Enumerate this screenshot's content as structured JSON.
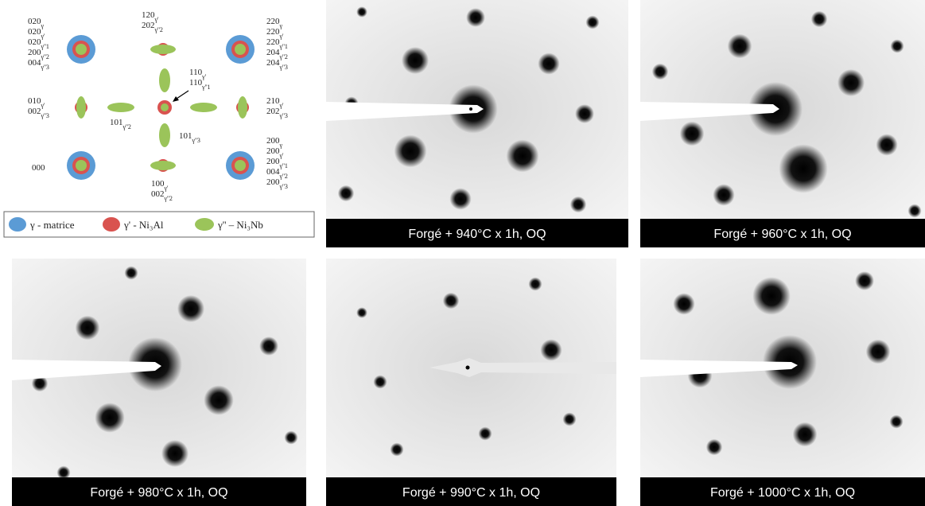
{
  "schematic": {
    "groups": [
      {
        "lines": [
          {
            "index": "020",
            "phase": "γ"
          },
          {
            "index": "020",
            "phase": "γ'"
          },
          {
            "index": "020",
            "phase": "γ''1"
          },
          {
            "index": "200",
            "phase": "γ''2"
          },
          {
            "index": "004",
            "phase": "γ''3"
          }
        ]
      },
      {
        "lines": [
          {
            "index": "120",
            "phase": "γ'"
          },
          {
            "index": "202",
            "phase": "γ''2"
          }
        ]
      },
      {
        "lines": [
          {
            "index": "220",
            "phase": "γ"
          },
          {
            "index": "220",
            "phase": "γ'"
          },
          {
            "index": "220",
            "phase": "γ''1"
          },
          {
            "index": "204",
            "phase": "γ''2"
          },
          {
            "index": "204",
            "phase": "γ''3"
          }
        ]
      },
      {
        "lines": [
          {
            "index": "110",
            "phase": "γ'"
          },
          {
            "index": "110",
            "phase": "γ''1"
          }
        ]
      },
      {
        "lines": [
          {
            "index": "010",
            "phase": "γ'"
          },
          {
            "index": "002",
            "phase": "γ''3"
          }
        ]
      },
      {
        "lines": [
          {
            "index": "101",
            "phase": "γ''2"
          }
        ]
      },
      {
        "lines": [
          {
            "index": "101",
            "phase": "γ''3"
          }
        ]
      },
      {
        "lines": [
          {
            "index": "210",
            "phase": "γ'"
          },
          {
            "index": "202",
            "phase": "γ''3"
          }
        ]
      },
      {
        "lines": [
          {
            "index": "000",
            "phase": ""
          }
        ]
      },
      {
        "lines": [
          {
            "index": "200",
            "phase": "γ"
          },
          {
            "index": "200",
            "phase": "γ'"
          },
          {
            "index": "200",
            "phase": "γ''1"
          },
          {
            "index": "004",
            "phase": "γ''2"
          },
          {
            "index": "200",
            "phase": "γ''3"
          }
        ]
      },
      {
        "lines": [
          {
            "index": "100",
            "phase": "γ'"
          },
          {
            "index": "002",
            "phase": "γ''2"
          }
        ]
      }
    ],
    "legend": [
      "γ - matrice",
      "γ' - Ni₃Al",
      "γ'' – Ni₃Nb"
    ]
  },
  "panels": [
    "Forgé + 940°C x 1h, OQ",
    "Forgé + 960°C x 1h, OQ",
    "Forgé + 980°C x 1h, OQ",
    "Forgé + 990°C x 1h, OQ",
    "Forgé + 1000°C x 1h, OQ"
  ]
}
